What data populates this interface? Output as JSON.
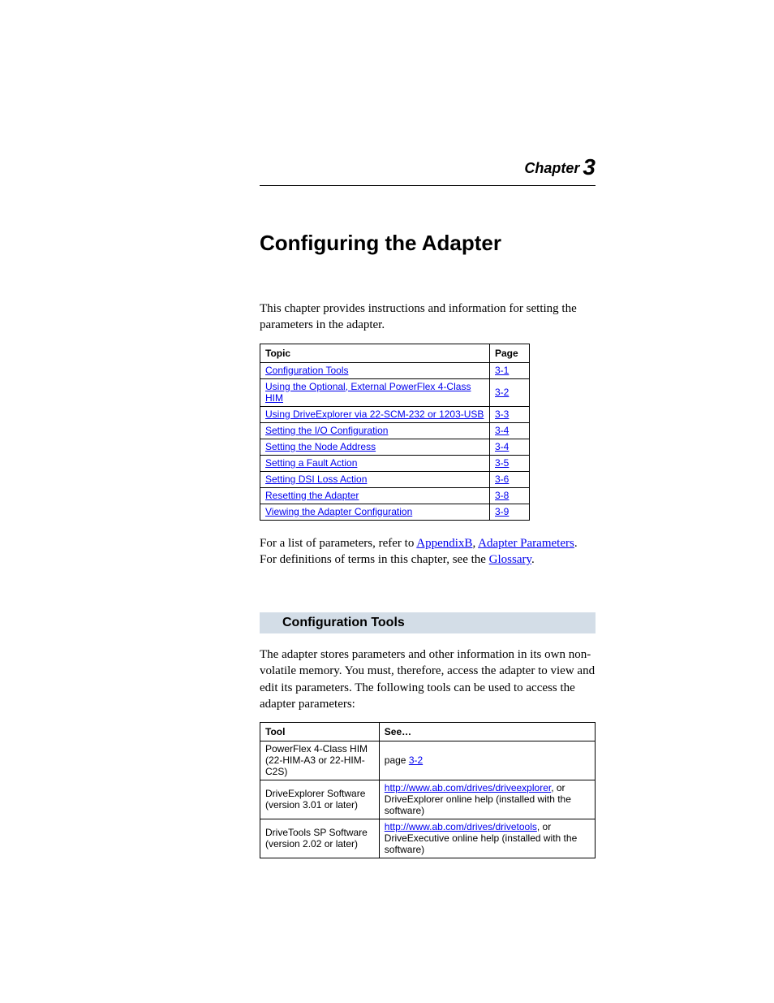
{
  "chapter": {
    "label": "Chapter",
    "num": "3"
  },
  "title": "Configuring the Adapter",
  "intro": "This chapter provides instructions and information for setting the parameters in the adapter.",
  "toc": {
    "headers": {
      "topic": "Topic",
      "page": "Page"
    },
    "rows": [
      {
        "topic": "Configuration Tools",
        "page": "3-1"
      },
      {
        "topic": "Using the Optional, External PowerFlex 4-Class HIM",
        "page": "3-2"
      },
      {
        "topic": "Using DriveExplorer via 22-SCM-232 or 1203-USB",
        "page": "3-3"
      },
      {
        "topic": "Setting the I/O Configuration",
        "page": "3-4"
      },
      {
        "topic": "Setting the Node Address",
        "page": "3-4"
      },
      {
        "topic": "Setting a Fault Action",
        "page": "3-5"
      },
      {
        "topic": "Setting DSI Loss Action",
        "page": "3-6"
      },
      {
        "topic": "Resetting the Adapter",
        "page": "3-8"
      },
      {
        "topic": "Viewing the Adapter Configuration",
        "page": "3-9"
      }
    ]
  },
  "ref_para": {
    "pre": "For a list of parameters, refer to ",
    "link1": "AppendixB",
    "mid1": ", ",
    "link2": "Adapter Parameters",
    "mid2": ". For definitions of terms in this chapter, see the ",
    "link3": "Glossary",
    "post": "."
  },
  "section": {
    "title": "Configuration Tools"
  },
  "section_para": "The adapter stores parameters and other information in its own non-volatile memory. You must, therefore, access the adapter to view and edit its parameters. The following tools can be used to access the adapter parameters:",
  "tools": {
    "headers": {
      "tool": "Tool",
      "see": "See…"
    },
    "rows": [
      {
        "tool_l1": "PowerFlex 4-Class HIM",
        "tool_l2": "(22-HIM-A3 or 22-HIM-C2S)",
        "see_pre": "page ",
        "see_link": "3-2",
        "see_post": ""
      },
      {
        "tool_l1": "DriveExplorer Software",
        "tool_l2": "(version 3.01 or later)",
        "see_pre": "",
        "see_link": "http://www.ab.com/drives/driveexplorer",
        "see_post": ", or\nDriveExplorer online help (installed with the software)"
      },
      {
        "tool_l1": "DriveTools SP Software",
        "tool_l2": "(version 2.02 or later)",
        "see_pre": "",
        "see_link": "http://www.ab.com/drives/drivetools",
        "see_post": ", or\nDriveExecutive online help (installed with the software)"
      }
    ]
  },
  "colors": {
    "link": "#0000ee",
    "section_bg": "#d3dde7",
    "border": "#000000",
    "text": "#000000",
    "page_bg": "#ffffff"
  }
}
